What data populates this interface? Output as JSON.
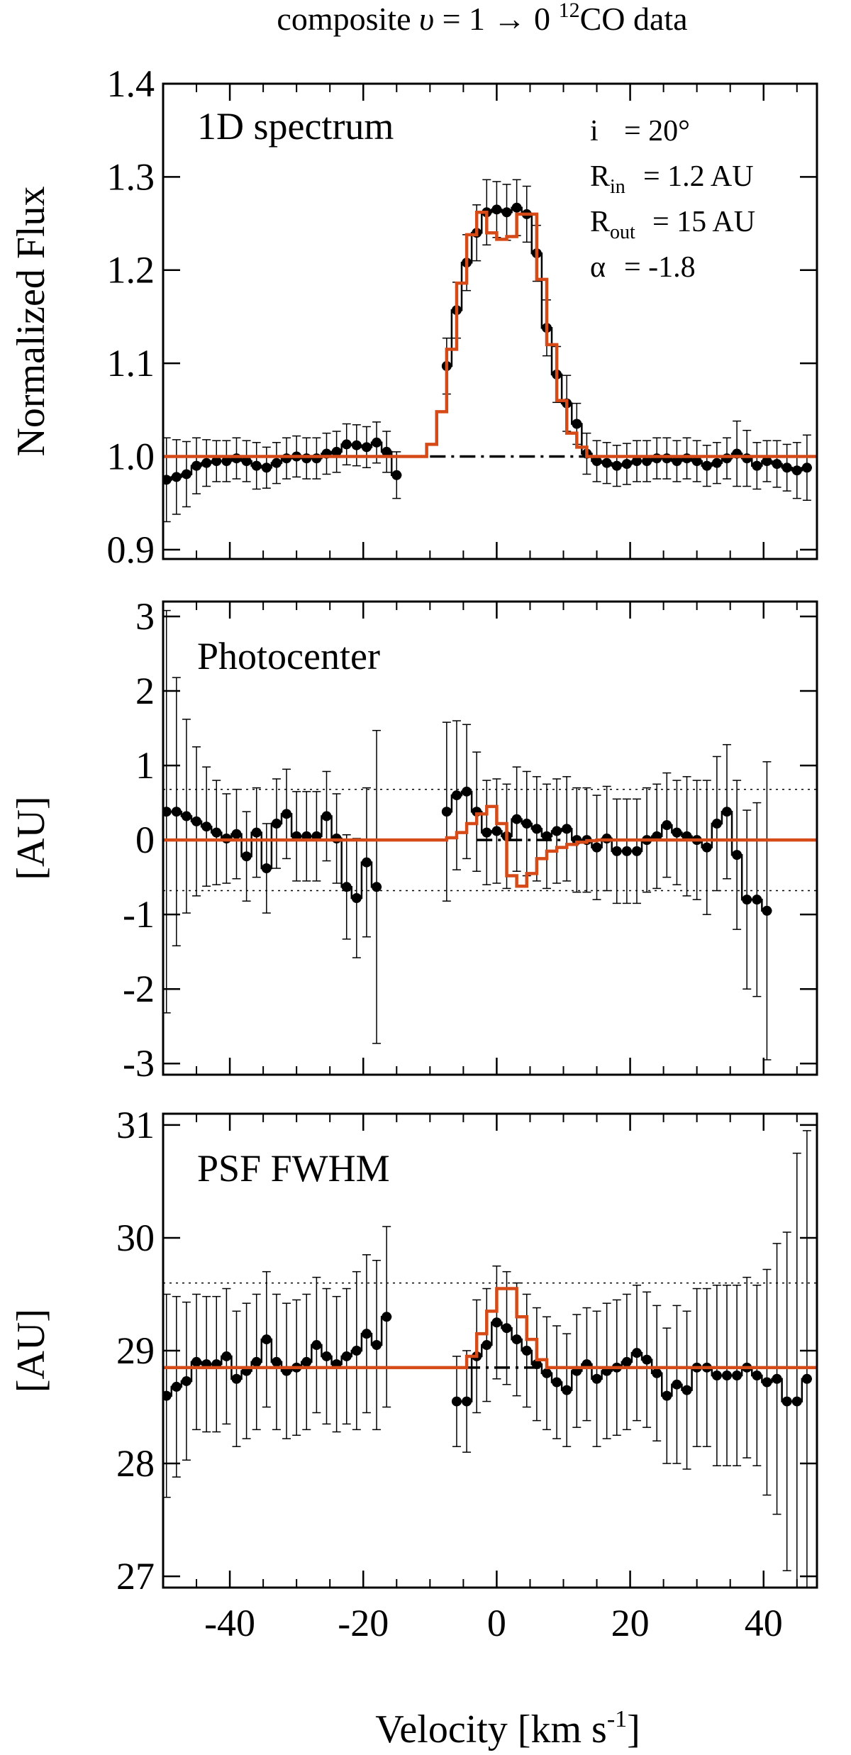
{
  "chart_data": {
    "type": "line",
    "title": {
      "prefix": "composite ",
      "nu": "υ",
      "middle": " = 1 → 0 ",
      "sup": "12",
      "suffix": "CO data"
    },
    "xlabel": {
      "main": "Velocity [km s",
      "sup": "-1",
      "close": "]"
    },
    "xlim": [
      -50,
      48
    ],
    "xticks": [
      -40,
      -20,
      0,
      20,
      40
    ],
    "xtick_labels": [
      "-40",
      "-20",
      "0",
      "20",
      "40"
    ],
    "panels": [
      {
        "label": "1D spectrum",
        "ylabel": "Normalized Flux",
        "ylim": [
          0.89,
          1.4
        ],
        "yticks": [
          0.9,
          1.0,
          1.1,
          1.2,
          1.3,
          1.4
        ],
        "ytick_labels": [
          "0.9",
          "1.0",
          "1.1",
          "1.2",
          "1.3",
          "1.4"
        ],
        "annotations": [
          {
            "main": "i",
            "sub": "",
            "value": "=  20°"
          },
          {
            "main": "R",
            "sub": "in",
            "value": "= 1.2 AU"
          },
          {
            "main": "R",
            "sub": "out",
            "value": "=  15 AU"
          },
          {
            "main": "α",
            "sub": "",
            "value": "=  -1.8"
          }
        ],
        "baseline": 1.0,
        "baseline_x": [
          -10,
          14
        ],
        "data": {
          "name": "data",
          "color": "#000000",
          "x": [
            -49.5,
            -48,
            -46.5,
            -45,
            -43.5,
            -42,
            -40.5,
            -39,
            -37.5,
            -36,
            -34.5,
            -33,
            -31.5,
            -30,
            -28.5,
            -27,
            -25.5,
            -24,
            -22.5,
            -21,
            -19.5,
            -18,
            -16.5,
            -15,
            null,
            -7.5,
            -6,
            -4.5,
            -3,
            -1.5,
            0,
            1.5,
            3,
            4.5,
            6,
            7.5,
            9,
            10.5,
            12,
            13.5,
            15,
            16.5,
            18,
            19.5,
            21,
            22.5,
            24,
            25.5,
            27,
            28.5,
            30,
            31.5,
            33,
            34.5,
            36,
            37.5,
            39,
            40.5,
            42,
            43.5,
            45,
            46.5
          ],
          "y": [
            0.975,
            0.978,
            0.981,
            0.99,
            0.993,
            0.995,
            0.995,
            0.998,
            0.995,
            0.99,
            0.988,
            0.993,
            0.998,
            1.0,
            0.998,
            0.998,
            1.003,
            1.005,
            1.013,
            1.012,
            1.01,
            1.015,
            1.005,
            0.98,
            null,
            1.097,
            1.157,
            1.208,
            1.24,
            1.262,
            1.265,
            1.262,
            1.267,
            1.26,
            1.218,
            1.138,
            1.088,
            1.057,
            1.035,
            1.003,
            0.995,
            0.993,
            0.99,
            0.992,
            0.995,
            0.995,
            0.998,
            0.998,
            0.995,
            0.998,
            0.995,
            0.99,
            0.993,
            0.998,
            1.003,
            0.998,
            0.99,
            0.995,
            0.992,
            0.988,
            0.985,
            0.988
          ],
          "err": [
            0.045,
            0.04,
            0.035,
            0.03,
            0.025,
            0.022,
            0.022,
            0.022,
            0.022,
            0.025,
            0.022,
            0.022,
            0.022,
            0.022,
            0.022,
            0.022,
            0.022,
            0.022,
            0.022,
            0.022,
            0.022,
            0.022,
            0.022,
            0.025,
            null,
            0.03,
            0.03,
            0.03,
            0.03,
            0.035,
            0.03,
            0.03,
            0.03,
            0.03,
            0.03,
            0.03,
            0.03,
            0.03,
            0.022,
            0.022,
            0.022,
            0.022,
            0.022,
            0.022,
            0.022,
            0.022,
            0.022,
            0.022,
            0.022,
            0.022,
            0.022,
            0.022,
            0.022,
            0.022,
            0.035,
            0.03,
            0.025,
            0.022,
            0.025,
            0.025,
            0.03,
            0.035
          ]
        },
        "model": {
          "name": "model",
          "color": "#d64a18",
          "x": [
            -50,
            -12,
            -10.5,
            -9,
            -7.5,
            -6,
            -4.5,
            -3,
            -1.5,
            0,
            1.5,
            3,
            4.5,
            6,
            7.5,
            9,
            10.5,
            12,
            13.5,
            15,
            48
          ],
          "y": [
            1.0,
            1.0,
            1.013,
            1.048,
            1.115,
            1.186,
            1.238,
            1.262,
            1.24,
            1.233,
            1.236,
            1.26,
            1.26,
            1.19,
            1.12,
            1.06,
            1.025,
            1.01,
            1.0,
            1.0,
            1.0
          ]
        }
      },
      {
        "label": "Photocenter",
        "ylabel": "[AU]",
        "ylim": [
          -3.15,
          3.2
        ],
        "yticks": [
          -3,
          -2,
          -1,
          0,
          1,
          2,
          3
        ],
        "ytick_labels": [
          "-3",
          "-2",
          "-1",
          "0",
          "1",
          "2",
          "3"
        ],
        "hlines": [
          0.68,
          -0.68
        ],
        "baseline": 0.0,
        "baseline_x": [
          -3,
          10
        ],
        "data": {
          "name": "data",
          "color": "#000000",
          "x": [
            -49.5,
            -48,
            -46.5,
            -45,
            -43.5,
            -42,
            -40.5,
            -39,
            -37.5,
            -36,
            -34.5,
            -33,
            -31.5,
            -30,
            -28.5,
            -27,
            -25.5,
            -24,
            -22.5,
            -21,
            -19.5,
            -18,
            -16.5,
            null,
            -7.5,
            -6,
            -4.5,
            -3,
            -1.5,
            0,
            1.5,
            3,
            4.5,
            6,
            7.5,
            9,
            10.5,
            12,
            13.5,
            15,
            16.5,
            18,
            19.5,
            21,
            22.5,
            24,
            25.5,
            27,
            28.5,
            30,
            31.5,
            33,
            34.5,
            36,
            37.5,
            39,
            40.5,
            42,
            43.5,
            45,
            46.5
          ],
          "y": [
            0.38,
            0.38,
            0.32,
            0.25,
            0.18,
            0.1,
            0.02,
            0.08,
            -0.22,
            0.1,
            -0.38,
            0.22,
            0.35,
            0.05,
            0.05,
            0.05,
            0.32,
            0.02,
            -0.63,
            -0.78,
            -0.3,
            -0.63,
            null,
            null,
            0.38,
            0.6,
            0.65,
            0.38,
            0.1,
            0.12,
            0.05,
            0.28,
            0.22,
            0.15,
            0.05,
            0.12,
            0.15,
            0.0,
            0.0,
            -0.1,
            0.02,
            -0.15,
            -0.15,
            -0.15,
            0.0,
            0.05,
            0.2,
            0.1,
            0.05,
            0.0,
            -0.1,
            0.22,
            0.38,
            -0.2,
            -0.8,
            -0.8,
            -0.95,
            null,
            null,
            null,
            null
          ],
          "err": [
            2.7,
            1.8,
            1.3,
            1.0,
            0.8,
            0.7,
            0.6,
            0.6,
            0.6,
            0.6,
            0.6,
            0.6,
            0.6,
            0.6,
            0.6,
            0.6,
            0.6,
            0.6,
            0.7,
            0.8,
            1.0,
            2.1,
            null,
            null,
            1.2,
            1.0,
            0.9,
            0.8,
            0.7,
            0.7,
            0.7,
            0.7,
            0.7,
            0.7,
            0.7,
            0.7,
            0.7,
            0.7,
            0.7,
            0.7,
            0.7,
            0.7,
            0.7,
            0.7,
            0.7,
            0.7,
            0.7,
            0.7,
            0.8,
            0.8,
            0.9,
            0.9,
            0.9,
            1.0,
            1.2,
            1.3,
            2.0,
            null,
            null,
            null,
            null
          ]
        },
        "model": {
          "name": "model",
          "color": "#d64a18",
          "x": [
            -50,
            -9,
            -7.5,
            -6,
            -4.5,
            -3,
            -1.5,
            0,
            1.5,
            3,
            4.5,
            6,
            7.5,
            9,
            10.5,
            12,
            13.5,
            15,
            48
          ],
          "y": [
            0.0,
            0.0,
            0.03,
            0.1,
            0.22,
            0.35,
            0.45,
            0.22,
            -0.48,
            -0.62,
            -0.45,
            -0.25,
            -0.15,
            -0.1,
            -0.06,
            -0.03,
            -0.01,
            0.0,
            0.0
          ]
        }
      },
      {
        "label": "PSF FWHM",
        "ylabel": "[AU]",
        "ylim": [
          26.9,
          31.1
        ],
        "yticks": [
          27,
          28,
          29,
          30,
          31
        ],
        "ytick_labels": [
          "27",
          "28",
          "29",
          "30",
          "31"
        ],
        "hlines": [
          29.6
        ],
        "baseline": 28.85,
        "baseline_x": [
          -45,
          8
        ],
        "data": {
          "name": "data",
          "color": "#000000",
          "x": [
            -49.5,
            -48,
            -46.5,
            -45,
            -43.5,
            -42,
            -40.5,
            -39,
            -37.5,
            -36,
            -34.5,
            -33,
            -31.5,
            -30,
            -28.5,
            -27,
            -25.5,
            -24,
            -22.5,
            -21,
            -19.5,
            -18,
            -16.5,
            null,
            -6,
            -4.5,
            -3,
            -1.5,
            0,
            1.5,
            3,
            4.5,
            6,
            7.5,
            9,
            10.5,
            12,
            13.5,
            15,
            16.5,
            18,
            19.5,
            21,
            22.5,
            24,
            25.5,
            27,
            28.5,
            30,
            31.5,
            33,
            34.5,
            36,
            37.5,
            39,
            40.5,
            42,
            43.5,
            45,
            46.5
          ],
          "y": [
            28.6,
            28.68,
            28.73,
            28.9,
            28.88,
            28.88,
            28.95,
            28.75,
            28.82,
            28.9,
            29.1,
            28.9,
            28.82,
            28.85,
            28.9,
            29.05,
            28.95,
            28.88,
            28.95,
            29.0,
            29.15,
            29.05,
            29.3,
            null,
            28.55,
            28.55,
            28.95,
            29.05,
            29.25,
            29.2,
            29.1,
            29.0,
            28.88,
            28.8,
            28.72,
            28.65,
            28.82,
            28.88,
            28.75,
            28.82,
            28.85,
            28.9,
            28.98,
            28.92,
            28.8,
            28.6,
            28.7,
            28.65,
            28.85,
            28.85,
            28.78,
            28.78,
            28.78,
            28.85,
            28.78,
            28.72,
            28.75,
            28.55,
            28.55,
            28.75
          ],
          "err": [
            0.9,
            0.8,
            0.7,
            0.6,
            0.6,
            0.6,
            0.6,
            0.6,
            0.6,
            0.6,
            0.6,
            0.6,
            0.6,
            0.6,
            0.6,
            0.6,
            0.6,
            0.6,
            0.6,
            0.7,
            0.7,
            0.75,
            0.8,
            null,
            0.4,
            0.45,
            0.5,
            0.5,
            0.5,
            0.5,
            0.5,
            0.5,
            0.5,
            0.5,
            0.5,
            0.5,
            0.5,
            0.5,
            0.6,
            0.6,
            0.6,
            0.6,
            0.6,
            0.6,
            0.6,
            0.6,
            0.7,
            0.7,
            0.7,
            0.7,
            0.8,
            0.8,
            0.8,
            0.8,
            0.8,
            1.0,
            1.2,
            1.5,
            2.2,
            2.2
          ]
        },
        "model": {
          "name": "model",
          "color": "#d64a18",
          "x": [
            -50,
            -6,
            -4.5,
            -3,
            -1.5,
            0,
            1.5,
            3,
            4.5,
            6,
            7.5,
            48
          ],
          "y": [
            28.85,
            28.85,
            28.95,
            29.15,
            29.35,
            29.55,
            29.55,
            29.3,
            29.1,
            28.92,
            28.85,
            28.85
          ]
        }
      }
    ]
  }
}
